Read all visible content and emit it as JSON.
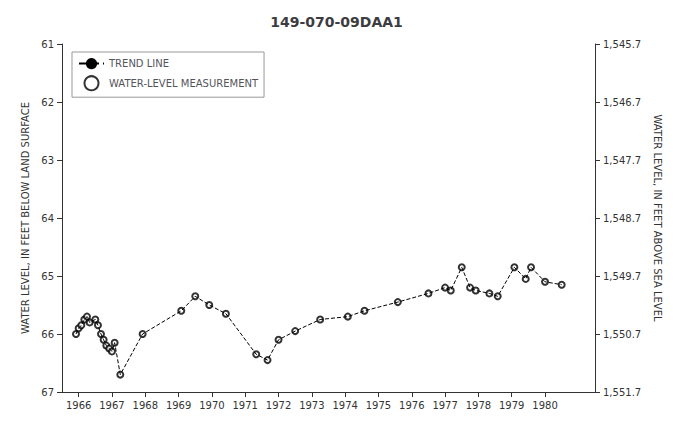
{
  "chart_data": {
    "type": "line",
    "title": "149-070-09DAA1",
    "y_label": "WATER LEVEL, IN FEET BELOW LAND SURFACE",
    "y2_label": "WATER LEVEL, IN FEET ABOVE SEA LEVEL",
    "x": [
      1965.92,
      1966.0,
      1966.08,
      1966.17,
      1966.25,
      1966.33,
      1966.5,
      1966.58,
      1966.67,
      1966.75,
      1966.83,
      1966.92,
      1967.0,
      1967.08,
      1967.25,
      1967.92,
      1969.08,
      1969.5,
      1969.92,
      1970.42,
      1971.33,
      1971.67,
      1972.0,
      1972.5,
      1973.25,
      1974.08,
      1974.58,
      1975.58,
      1976.5,
      1977.0,
      1977.17,
      1977.5,
      1977.75,
      1977.92,
      1978.33,
      1978.58,
      1979.08,
      1979.42,
      1979.58,
      1980.0,
      1980.5
    ],
    "series": [
      {
        "name": "TREND LINE",
        "type": "line",
        "line_style": "dashed",
        "color": "#000000",
        "values": [
          66.0,
          65.9,
          65.85,
          65.75,
          65.7,
          65.8,
          65.75,
          65.85,
          66.0,
          66.1,
          66.2,
          66.25,
          66.3,
          66.15,
          66.7,
          66.0,
          65.6,
          65.35,
          65.5,
          65.65,
          66.35,
          66.45,
          66.1,
          65.95,
          65.75,
          65.7,
          65.6,
          65.45,
          65.3,
          65.2,
          65.25,
          64.85,
          65.2,
          65.25,
          65.3,
          65.35,
          64.85,
          65.05,
          64.85,
          65.1,
          65.15
        ]
      },
      {
        "name": "WATER-LEVEL MEASUREMENT",
        "type": "scatter",
        "marker": "circle",
        "color": "#000000",
        "values": [
          66.0,
          65.9,
          65.85,
          65.75,
          65.7,
          65.8,
          65.75,
          65.85,
          66.0,
          66.1,
          66.2,
          66.25,
          66.3,
          66.15,
          66.7,
          66.0,
          65.6,
          65.35,
          65.5,
          65.65,
          66.35,
          66.45,
          66.1,
          65.95,
          65.75,
          65.7,
          65.6,
          65.45,
          65.3,
          65.2,
          65.25,
          64.85,
          65.2,
          65.25,
          65.3,
          65.35,
          64.85,
          65.05,
          64.85,
          65.1,
          65.15
        ]
      }
    ],
    "xlim": [
      1965.5,
      1981.5
    ],
    "xticks": [
      1966,
      1967,
      1968,
      1969,
      1970,
      1971,
      1972,
      1973,
      1974,
      1975,
      1976,
      1977,
      1978,
      1979,
      1980
    ],
    "ylim": [
      67,
      61
    ],
    "yticks": [
      61,
      62,
      63,
      64,
      65,
      66,
      67
    ],
    "y2lim": [
      1551.7,
      1545.7
    ],
    "y2ticks": [
      {
        "value": 1551.7,
        "label": "1,551.7"
      },
      {
        "value": 1550.7,
        "label": "1,550.7"
      },
      {
        "value": 1549.7,
        "label": "1,549.7"
      },
      {
        "value": 1548.7,
        "label": "1,548.7"
      },
      {
        "value": 1547.7,
        "label": "1,547.7"
      },
      {
        "value": 1546.7,
        "label": "1,546.7"
      },
      {
        "value": 1545.7,
        "label": "1,545.7"
      }
    ],
    "grid": false,
    "legend": "upper left"
  }
}
